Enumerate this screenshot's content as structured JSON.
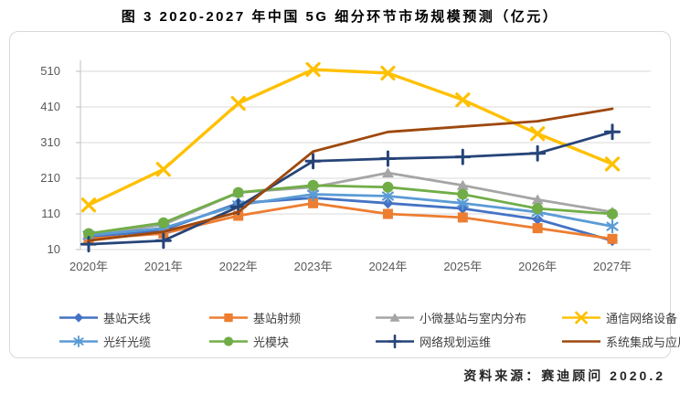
{
  "title": "图 3 2020-2027 年中国 5G 细分环节市场规模预测（亿元）",
  "source": "资料来源：赛迪顾问  2020.2",
  "chart_data": {
    "type": "line",
    "title": "图 3 2020-2027 年中国 5G 细分环节市场规模预测（亿元）",
    "xlabel": "",
    "ylabel": "",
    "unit": "亿元",
    "categories": [
      "2020年",
      "2021年",
      "2022年",
      "2023年",
      "2024年",
      "2025年",
      "2026年",
      "2027年"
    ],
    "y_ticks": [
      10,
      110,
      210,
      310,
      410,
      510
    ],
    "ylim": [
      10,
      510
    ],
    "grid": true,
    "legend_position": "bottom",
    "series": [
      {
        "name": "基站天线",
        "color": "#4472C4",
        "marker": "diamond",
        "values": [
          45,
          65,
          140,
          155,
          140,
          125,
          95,
          35
        ]
      },
      {
        "name": "基站射频",
        "color": "#ED7D31",
        "marker": "square",
        "values": [
          40,
          55,
          105,
          140,
          110,
          100,
          70,
          40
        ]
      },
      {
        "name": "小微基站与室内分布",
        "color": "#A5A5A5",
        "marker": "triangle",
        "values": [
          50,
          80,
          170,
          185,
          225,
          190,
          150,
          115
        ]
      },
      {
        "name": "通信网络设备",
        "color": "#FFC000",
        "marker": "x",
        "values": [
          135,
          235,
          420,
          515,
          505,
          430,
          335,
          250
        ]
      },
      {
        "name": "光纤光缆",
        "color": "#5B9BD5",
        "marker": "asterisk",
        "values": [
          50,
          70,
          135,
          165,
          160,
          140,
          115,
          75
        ]
      },
      {
        "name": "光模块",
        "color": "#70AD47",
        "marker": "circle",
        "values": [
          55,
          85,
          170,
          190,
          185,
          165,
          125,
          110
        ]
      },
      {
        "name": "网络规划运维",
        "color": "#264478",
        "marker": "plus",
        "values": [
          25,
          35,
          130,
          258,
          265,
          270,
          280,
          340
        ]
      },
      {
        "name": "系统集成与应用服务",
        "color": "#9E480E",
        "marker": "none",
        "values": [
          35,
          60,
          115,
          285,
          340,
          355,
          370,
          405
        ]
      }
    ],
    "colors": {
      "gridline": "#d9d9d9",
      "axis": "#bfbfbf",
      "tick_label": "#595959",
      "legend_label": "#404040"
    }
  }
}
